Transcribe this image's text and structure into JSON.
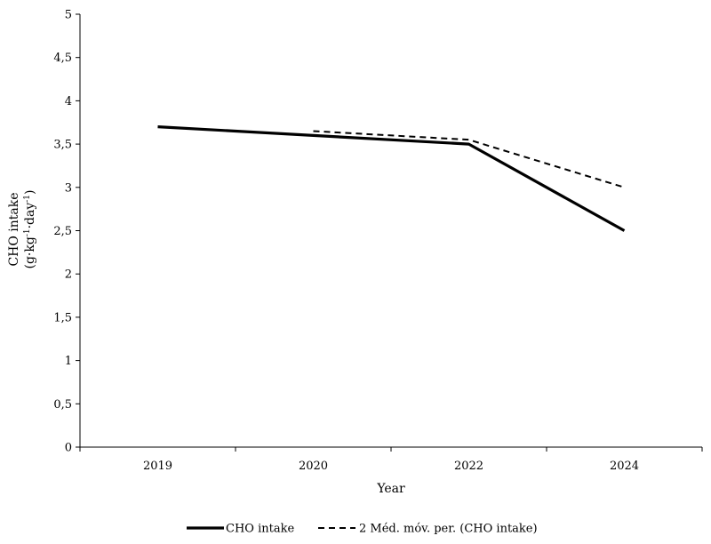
{
  "chart_data": {
    "type": "line",
    "title": "",
    "xlabel": "Year",
    "ylabel_line1": "CHO intake",
    "ylabel_line2_parts": [
      "(g",
      "·",
      "kg",
      "-1",
      "·",
      "day",
      "-1",
      ")"
    ],
    "categories": [
      "2019",
      "2020",
      "2022",
      "2024"
    ],
    "ylim": [
      0,
      5
    ],
    "yticks": [
      0,
      0.5,
      1,
      1.5,
      2,
      2.5,
      3,
      3.5,
      4,
      4.5,
      5
    ],
    "ytick_labels": [
      "0",
      "0,5",
      "1",
      "1,5",
      "2",
      "2,5",
      "3",
      "3,5",
      "4",
      "4,5",
      "5"
    ],
    "grid": false,
    "legend_position": "bottom",
    "series": [
      {
        "name": "CHO intake",
        "values": [
          3.7,
          3.6,
          3.5,
          2.5
        ],
        "style": "solid",
        "color": "#000000"
      },
      {
        "name": "2 Méd. móv. per. (CHO intake)",
        "values": [
          null,
          3.65,
          3.55,
          3.0
        ],
        "style": "dashed",
        "color": "#000000"
      }
    ]
  }
}
